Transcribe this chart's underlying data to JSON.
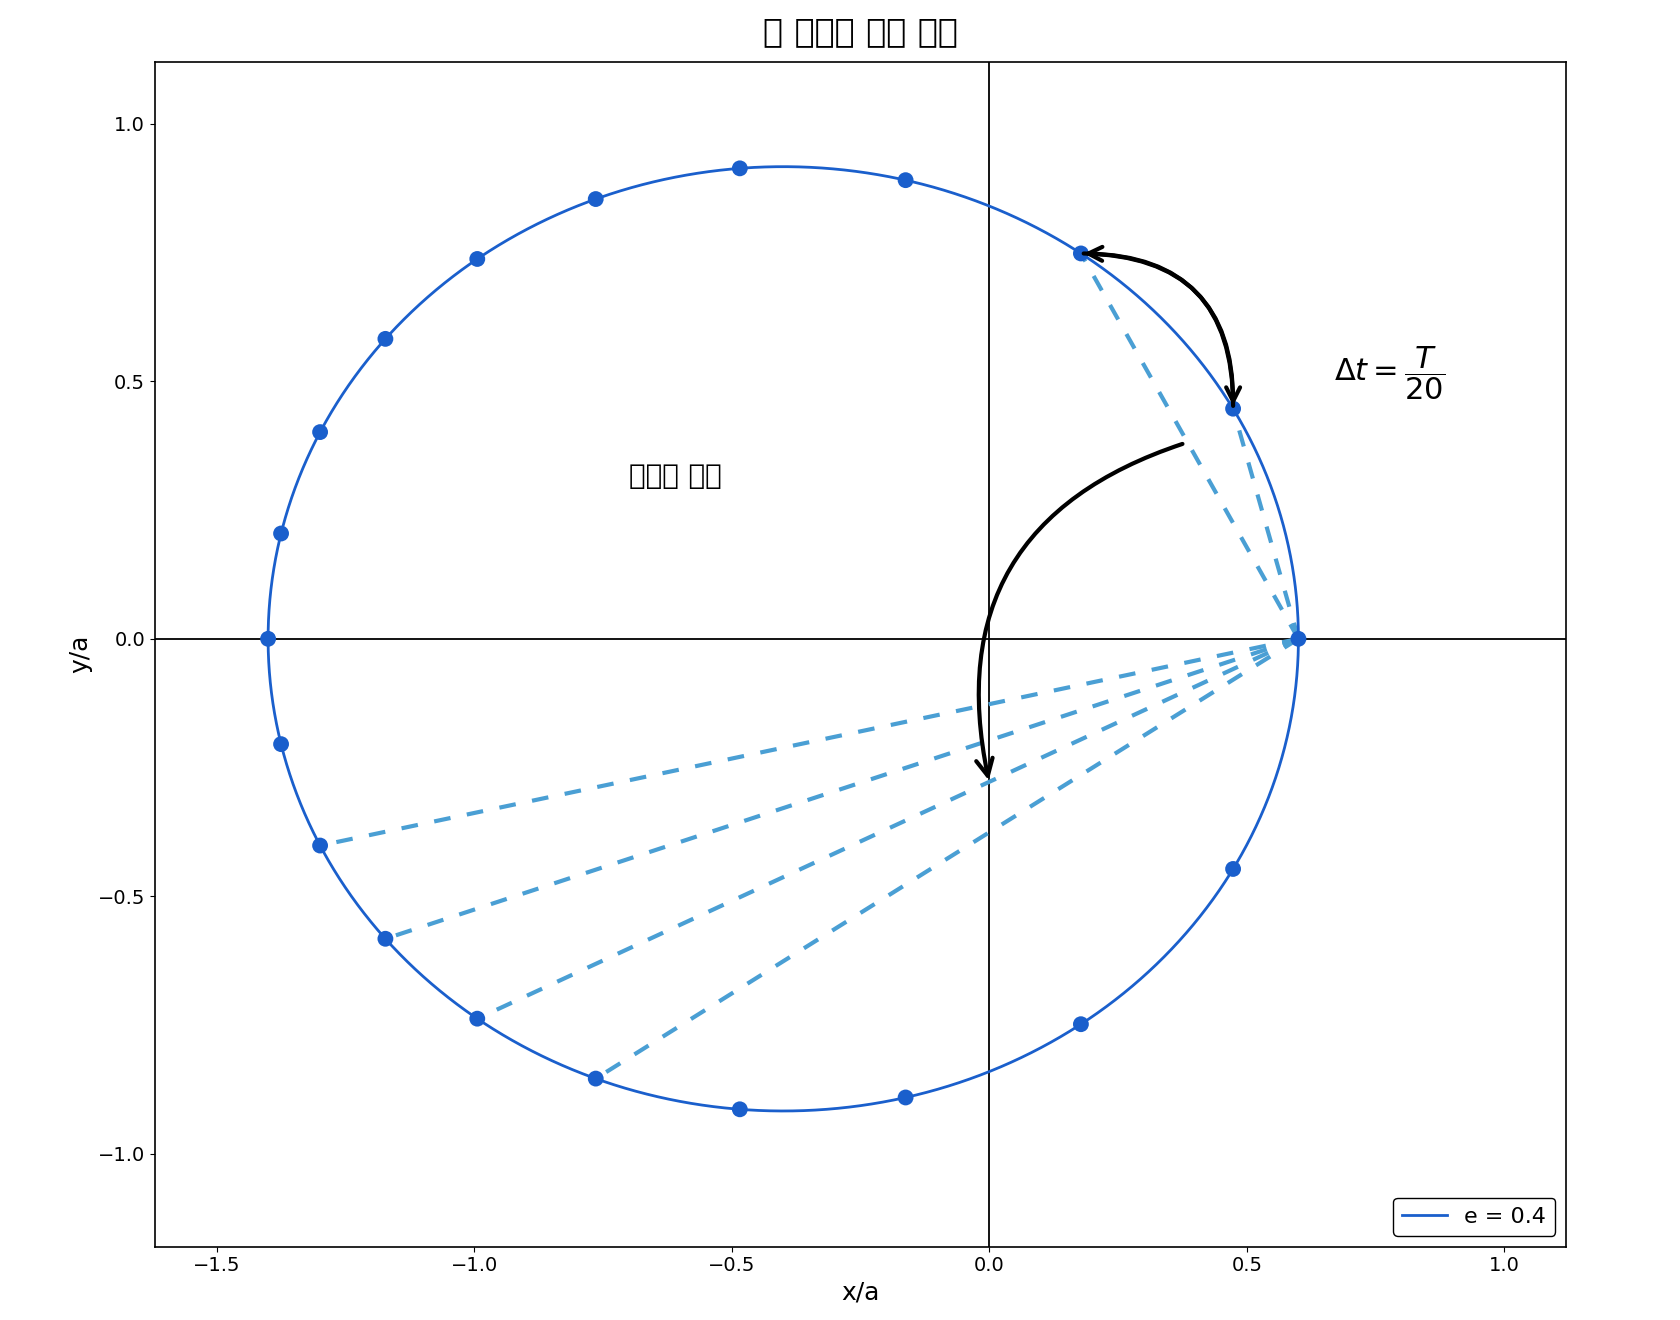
{
  "title": "념 행성의 궤도 운동",
  "xlabel": "x/a",
  "ylabel": "y/a",
  "eccentricity": 0.4,
  "n_points": 20,
  "xlim": [
    -1.62,
    1.12
  ],
  "ylim": [
    -1.18,
    1.12
  ],
  "orbit_color": "#1a5fcc",
  "dot_color": "#1a5fcc",
  "dotted_line_color": "#4a9fd4",
  "dot_size": 130,
  "legend_label": "e = 0.4",
  "annotation_equal_area": "동일한 면적",
  "xticks": [
    -1.5,
    -1.0,
    -0.5,
    0.0,
    0.5,
    1.0
  ],
  "yticks": [
    -1.0,
    -0.5,
    0.0,
    0.5,
    1.0
  ],
  "peri_group": [
    1,
    2
  ],
  "aph_group": [
    12,
    13,
    14,
    15
  ]
}
